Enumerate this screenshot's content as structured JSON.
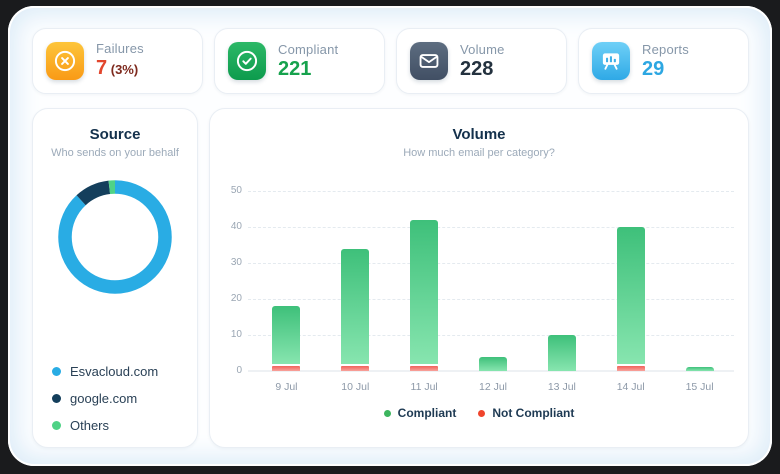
{
  "stats": [
    {
      "label": "Failures",
      "value": "7",
      "suffix": " (3%)",
      "icon": "circle-x-icon",
      "icon_bg": [
        "#fdc53a",
        "#f99a16"
      ],
      "value_color": "#e2462d",
      "suffix_color": "#7e2a1e"
    },
    {
      "label": "Compliant",
      "value": "221",
      "suffix": "",
      "icon": "circle-check-icon",
      "icon_bg": [
        "#2cb867",
        "#0d9b4d"
      ],
      "value_color": "#16a24d",
      "suffix_color": ""
    },
    {
      "label": "Volume",
      "value": "228",
      "suffix": "",
      "icon": "envelope-icon",
      "icon_bg": [
        "#5d6d80",
        "#414f64"
      ],
      "value_color": "#24323f",
      "suffix_color": ""
    },
    {
      "label": "Reports",
      "value": "29",
      "suffix": "",
      "icon": "presentation-icon",
      "icon_bg": [
        "#6fd0f7",
        "#2fa9e6"
      ],
      "value_color": "#2da7e2",
      "suffix_color": ""
    }
  ],
  "source_panel": {
    "title": "Source",
    "subtitle": "Who sends on your behalf",
    "legend": [
      {
        "label": "Esvacloud.com",
        "color": "#29ace4"
      },
      {
        "label": "google.com",
        "color": "#143f5c"
      },
      {
        "label": "Others",
        "color": "#4fd286"
      }
    ]
  },
  "volume_panel": {
    "title": "Volume",
    "subtitle": "How much email per category?",
    "legend": [
      {
        "label": "Compliant",
        "color": "#3cb55e"
      },
      {
        "label": "Not Compliant",
        "color": "#f0452c"
      }
    ]
  },
  "chart_data": [
    {
      "type": "pie",
      "subtype": "donut",
      "title": "Source",
      "subtitle": "Who sends on your behalf",
      "segments": [
        {
          "label": "Esvacloud.com",
          "value": 88,
          "color": "#29ace4"
        },
        {
          "label": "google.com",
          "value": 10,
          "color": "#143f5c"
        },
        {
          "label": "Others",
          "value": 2,
          "color": "#4fd286"
        }
      ]
    },
    {
      "type": "bar",
      "stacked": true,
      "title": "Volume",
      "subtitle": "How much email per category?",
      "categories": [
        "9 Jul",
        "10 Jul",
        "11 Jul",
        "12 Jul",
        "13 Jul",
        "14 Jul",
        "15 Jul"
      ],
      "series": [
        {
          "name": "Not Compliant",
          "color": "#f0452c",
          "values": [
            2,
            2,
            2,
            0,
            0,
            2,
            0
          ]
        },
        {
          "name": "Compliant",
          "color": "#3cb55e",
          "values": [
            16,
            32,
            40,
            4,
            10,
            38,
            1
          ]
        }
      ],
      "totals": [
        18,
        34,
        42,
        4,
        10,
        40,
        1
      ],
      "ylim": [
        0,
        50
      ],
      "yticks": [
        0,
        10,
        20,
        30,
        40,
        50
      ],
      "grid": "dashed-horizontal",
      "legend_position": "bottom"
    }
  ]
}
